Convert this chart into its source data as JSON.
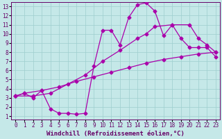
{
  "xlabel": "Windchill (Refroidissement éolien,°C)",
  "bg_color": "#c5e8e8",
  "grid_color": "#9dcece",
  "line_color": "#aa00aa",
  "spine_color": "#660066",
  "xlim": [
    -0.5,
    23.5
  ],
  "ylim": [
    0.6,
    13.5
  ],
  "xticks": [
    0,
    1,
    2,
    3,
    4,
    5,
    6,
    7,
    8,
    9,
    10,
    11,
    12,
    13,
    14,
    15,
    16,
    17,
    18,
    19,
    20,
    21,
    22,
    23
  ],
  "yticks": [
    1,
    2,
    3,
    4,
    5,
    6,
    7,
    8,
    9,
    10,
    11,
    12,
    13
  ],
  "curve1_x": [
    0,
    1,
    3,
    5,
    7,
    9,
    11,
    13,
    15,
    17,
    19,
    21,
    23
  ],
  "curve1_y": [
    3.2,
    3.5,
    3.8,
    4.2,
    4.8,
    5.3,
    5.8,
    6.3,
    6.8,
    7.2,
    7.5,
    7.8,
    8.0
  ],
  "curve2_x": [
    0,
    1,
    2,
    3,
    4,
    5,
    6,
    7,
    8,
    9,
    10,
    11,
    12,
    13,
    14,
    15,
    16,
    17,
    18,
    19,
    20,
    21,
    22,
    23
  ],
  "curve2_y": [
    3.2,
    3.5,
    3.0,
    3.8,
    1.8,
    1.3,
    1.3,
    1.2,
    1.3,
    6.5,
    10.4,
    10.4,
    8.8,
    11.8,
    13.2,
    13.4,
    12.5,
    9.8,
    11.0,
    9.5,
    8.5,
    8.5,
    8.5,
    7.5
  ],
  "curve3_x": [
    0,
    2,
    4,
    6,
    8,
    10,
    12,
    14,
    15,
    16,
    18,
    20,
    21,
    22,
    23
  ],
  "curve3_y": [
    3.2,
    3.2,
    3.5,
    4.5,
    5.5,
    7.0,
    8.2,
    9.5,
    10.0,
    10.8,
    11.0,
    11.0,
    9.5,
    8.8,
    8.0
  ],
  "marker": "D",
  "markersize": 2.5,
  "linewidth": 0.9,
  "tick_fontsize": 5.5,
  "xlabel_fontsize": 6.5
}
